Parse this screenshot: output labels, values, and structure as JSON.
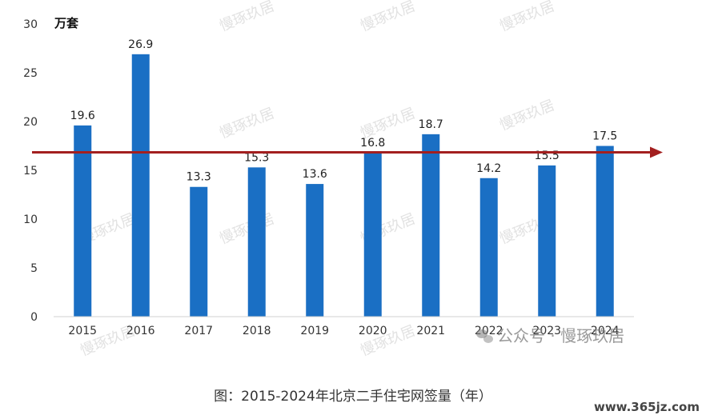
{
  "chart_data": {
    "type": "bar",
    "unit_label": "万套",
    "categories": [
      "2015",
      "2016",
      "2017",
      "2018",
      "2019",
      "2020",
      "2021",
      "2022",
      "2023",
      "2024"
    ],
    "values": [
      19.6,
      26.9,
      13.3,
      15.3,
      13.6,
      16.8,
      18.7,
      14.2,
      15.5,
      17.5
    ],
    "data_labels": [
      "19.6",
      "26.9",
      "13.3",
      "15.3",
      "13.6",
      "16.8",
      "18.7",
      "14.2",
      "15.5",
      "17.5"
    ],
    "ylim": [
      0,
      30
    ],
    "yticks": [
      "0",
      "5",
      "10",
      "15",
      "20",
      "25",
      "30"
    ],
    "reference_line": {
      "value": 17.5,
      "color": "#a31f1f",
      "style": "arrow"
    },
    "bar_color": "#1a6fc4",
    "grid": false
  },
  "caption": "图：2015-2024年北京二手住宅网签量（年）",
  "watermark": {
    "brand": "慢琢玖居",
    "wechat_prefix": "公众号 ·",
    "site": "www.365jz.com"
  }
}
